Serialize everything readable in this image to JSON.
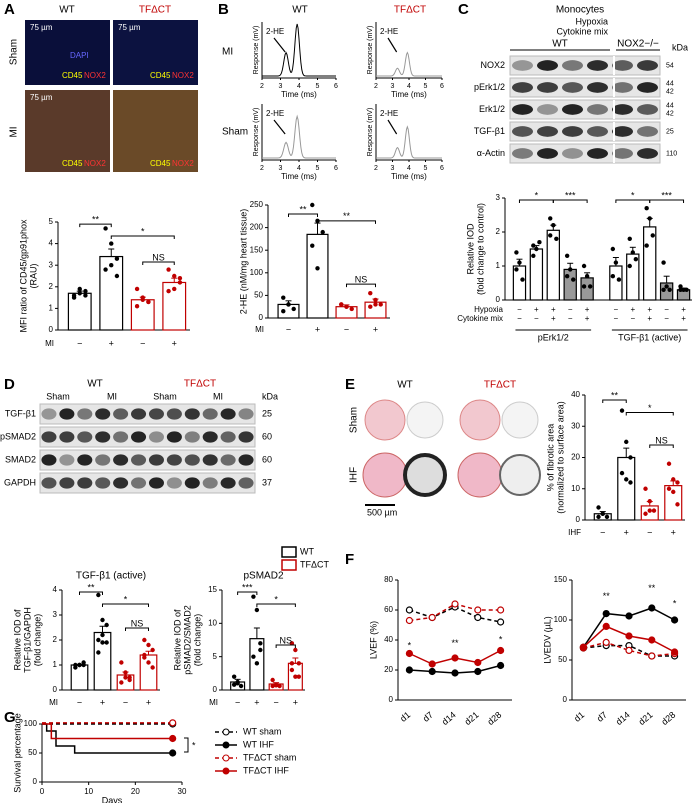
{
  "panels": {
    "A": {
      "letter": "A",
      "cols": [
        "WT",
        "TFΔCT"
      ],
      "rows": [
        "Sham",
        "MI"
      ],
      "scale": "75 µm",
      "stains": [
        "DAPI",
        "CD45",
        "NOX2"
      ]
    },
    "B": {
      "letter": "B",
      "cols": [
        "WT",
        "TFΔCT"
      ],
      "rows": [
        "MI",
        "Sham"
      ]
    },
    "C": {
      "letter": "C",
      "title": "Monocytes",
      "groups": [
        "WT",
        "NOX2−/−"
      ],
      "rows": [
        "Hypoxia",
        "Cytokine mix"
      ],
      "kda": "kDa",
      "blots": [
        {
          "label": "NOX2",
          "kda": [
            "54"
          ]
        },
        {
          "label": "pErk1/2",
          "kda": [
            "44",
            "42"
          ]
        },
        {
          "label": "Erk1/2",
          "kda": [
            "44",
            "42"
          ]
        },
        {
          "label": "TGF-β1",
          "kda": [
            "25"
          ]
        },
        {
          "label": "α-Actin",
          "kda": [
            "110"
          ]
        }
      ]
    },
    "D": {
      "letter": "D",
      "groups": [
        "WT",
        "TFΔCT"
      ],
      "lanes": [
        "Sham",
        "MI",
        "Sham",
        "MI"
      ],
      "kda": "kDa",
      "blots": [
        {
          "label": "TGF-β1",
          "kda": "25"
        },
        {
          "label": "pSMAD2",
          "kda": "60"
        },
        {
          "label": "SMAD2",
          "kda": "60"
        },
        {
          "label": "GAPDH",
          "kda": "37"
        }
      ]
    },
    "E": {
      "letter": "E",
      "cols": [
        "WT",
        "TFΔCT"
      ],
      "rows": [
        "Sham",
        "IHF"
      ],
      "scale": "500 µm"
    },
    "F": {
      "letter": "F"
    },
    "G": {
      "letter": "G"
    }
  },
  "chart_data": [
    {
      "type": "bar",
      "ylabel": [
        "MFI ratio of CD45/gp91phox",
        "(RAU)"
      ],
      "ylim": [
        0,
        5
      ],
      "yticks": [
        0,
        1,
        2,
        3,
        4,
        5
      ],
      "row_label": "MI",
      "categories": [
        "−",
        "+",
        "−",
        "+"
      ],
      "values": [
        1.7,
        3.4,
        1.4,
        2.2
      ],
      "errors": [
        0.1,
        0.35,
        0.12,
        0.2
      ],
      "colors": [
        "#000",
        "#000",
        "#c00000",
        "#c00000"
      ],
      "points": [
        [
          1.6,
          1.7,
          1.8,
          1.5,
          1.9,
          1.6
        ],
        [
          4.7,
          4.0,
          3.3,
          2.8,
          3.0,
          2.5
        ],
        [
          1.9,
          1.5,
          1.3,
          1.1,
          1.4,
          1.3
        ],
        [
          2.8,
          2.5,
          2.2,
          1.8,
          1.9,
          2.4
        ]
      ],
      "annotations": [
        "**",
        "*",
        "NS"
      ]
    },
    {
      "type": "bar",
      "ylabel": [
        "2-HE (nM/mg heart tissue)"
      ],
      "ylim": [
        0,
        250
      ],
      "yticks": [
        0,
        50,
        100,
        150,
        200,
        250
      ],
      "row_label": "MI",
      "categories": [
        "−",
        "+",
        "−",
        "+"
      ],
      "values": [
        30,
        185,
        25,
        35
      ],
      "errors": [
        8,
        25,
        4,
        7
      ],
      "colors": [
        "#000",
        "#000",
        "#c00000",
        "#c00000"
      ],
      "points": [
        [
          45,
          30,
          20,
          15,
          30
        ],
        [
          250,
          215,
          190,
          160,
          110
        ],
        [
          30,
          25,
          20,
          30,
          25
        ],
        [
          55,
          40,
          30,
          25,
          30
        ]
      ],
      "annotations": [
        "**",
        "**",
        "NS"
      ]
    },
    {
      "type": "bar",
      "ylabel": [
        "Relative IOD",
        "(fold change to control)"
      ],
      "ylim": [
        0,
        3
      ],
      "yticks": [
        0,
        1,
        2,
        3
      ],
      "rows": [
        {
          "label": "Hypoxia",
          "values": [
            "−",
            "+",
            "+",
            "−",
            "+",
            "−",
            "+",
            "+",
            "−",
            "+"
          ]
        },
        {
          "label": "Cytokine mix",
          "values": [
            "−",
            "−",
            "+",
            "−",
            "+",
            "−",
            "−",
            "+",
            "−",
            "+"
          ]
        }
      ],
      "groups": [
        "pErk1/2",
        "TGF-β1 (active)"
      ],
      "values": [
        1.0,
        1.5,
        2.05,
        0.9,
        0.65,
        1.0,
        1.35,
        2.15,
        0.5,
        0.3
      ],
      "errors": [
        0.2,
        0.1,
        0.15,
        0.18,
        0.15,
        0.25,
        0.2,
        0.25,
        0.2,
        0.05
      ],
      "colors": [
        "#000",
        "#000",
        "#000",
        "#000",
        "#000",
        "#000",
        "#000",
        "#000",
        "#000",
        "#000"
      ],
      "fills": [
        "#fff",
        "#fff",
        "#fff",
        "#999",
        "#999",
        "#fff",
        "#fff",
        "#fff",
        "#999",
        "#999"
      ],
      "points": [
        [
          1.4,
          1.1,
          0.6,
          0.9
        ],
        [
          1.6,
          1.5,
          1.7,
          1.3
        ],
        [
          2.4,
          2.2,
          1.8,
          1.9
        ],
        [
          1.3,
          0.9,
          0.6,
          0.7
        ],
        [
          1.0,
          0.7,
          0.4,
          0.4
        ],
        [
          1.5,
          1.1,
          0.6,
          0.7
        ],
        [
          1.8,
          1.4,
          1.2,
          1.0
        ],
        [
          2.7,
          2.4,
          1.9,
          1.6
        ],
        [
          1.1,
          0.4,
          0.3,
          0.3
        ],
        [
          0.4,
          0.3,
          0.3,
          0.3
        ]
      ],
      "annotations": [
        "*",
        "***",
        "*",
        "***"
      ]
    },
    {
      "type": "bar",
      "title": "TGF-β1 (active)",
      "ylabel": [
        "Relative IOD of",
        "TGF-β1/GAPDH",
        "(fold change)"
      ],
      "ylim": [
        0,
        4
      ],
      "yticks": [
        0,
        1,
        2,
        3,
        4
      ],
      "row_label": "MI",
      "categories": [
        "−",
        "+",
        "−",
        "+"
      ],
      "values": [
        1.0,
        2.3,
        0.6,
        1.4
      ],
      "errors": [
        0.03,
        0.25,
        0.12,
        0.15
      ],
      "colors": [
        "#000",
        "#000",
        "#c00000",
        "#c00000"
      ],
      "points": [
        [
          1.0,
          1.0,
          1.1,
          0.9,
          1.0,
          1.0
        ],
        [
          3.8,
          2.8,
          2.6,
          2.0,
          1.9,
          1.9,
          1.5,
          2.2
        ],
        [
          1.1,
          0.7,
          0.4,
          0.3,
          0.5,
          0.5
        ],
        [
          2.0,
          1.8,
          1.6,
          1.4,
          1.1,
          0.9,
          1.3
        ]
      ],
      "annotations": [
        "**",
        "*",
        "NS"
      ]
    },
    {
      "type": "bar",
      "title": "pSMAD2",
      "ylabel": [
        "Relative IOD of",
        "pSMAD2/SMAD2",
        "(fold change)"
      ],
      "ylim": [
        0,
        15
      ],
      "yticks": [
        0,
        5,
        10,
        15
      ],
      "row_label": "MI",
      "categories": [
        "−",
        "+",
        "−",
        "+"
      ],
      "values": [
        1.2,
        7.7,
        0.9,
        4.0
      ],
      "errors": [
        0.4,
        1.6,
        0.2,
        0.8
      ],
      "colors": [
        "#000",
        "#000",
        "#c00000",
        "#c00000"
      ],
      "points": [
        [
          2.0,
          1.2,
          0.6,
          0.8,
          1.0
        ],
        [
          14,
          12,
          7,
          5,
          4,
          6
        ],
        [
          1.5,
          0.7,
          0.6,
          0.6,
          0.8
        ],
        [
          7,
          6,
          4,
          3,
          2,
          2,
          4
        ]
      ],
      "annotations": [
        "***",
        "*",
        "NS"
      ],
      "legend": [
        {
          "name": "WT",
          "color": "#000"
        },
        {
          "name": "TFΔCT",
          "color": "#c00000"
        }
      ]
    },
    {
      "type": "bar",
      "ylabel": [
        "% of fibrotic area",
        "(normalized to surface area)"
      ],
      "ylim": [
        0,
        40
      ],
      "yticks": [
        0,
        10,
        20,
        30,
        40
      ],
      "row_label": "IHF",
      "categories": [
        "−",
        "+",
        "−",
        "+"
      ],
      "values": [
        2,
        20,
        4.5,
        11
      ],
      "errors": [
        0.7,
        3,
        1.4,
        1.5
      ],
      "colors": [
        "#000",
        "#000",
        "#c00000",
        "#c00000"
      ],
      "points": [
        [
          4,
          2,
          1,
          1,
          2
        ],
        [
          35,
          25,
          20,
          15,
          13,
          12
        ],
        [
          10,
          6,
          3,
          2,
          3
        ],
        [
          18,
          13,
          12,
          10,
          9,
          5
        ]
      ],
      "annotations": [
        "**",
        "*",
        "NS"
      ]
    },
    {
      "type": "line",
      "ylabel": [
        "LVEF (%)"
      ],
      "ylim": [
        0,
        80
      ],
      "yticks": [
        0,
        20,
        40,
        60,
        80
      ],
      "categories": [
        "d1",
        "d7",
        "d14",
        "d21",
        "d28"
      ],
      "series": [
        {
          "color": "#000",
          "dash": true,
          "marker": "open",
          "values": [
            60,
            55,
            62,
            55,
            52
          ]
        },
        {
          "color": "#000",
          "dash": false,
          "marker": "filled",
          "values": [
            20,
            19,
            18,
            19,
            23
          ]
        },
        {
          "color": "#c00000",
          "dash": true,
          "marker": "open",
          "values": [
            53,
            55,
            64,
            60,
            60
          ]
        },
        {
          "color": "#c00000",
          "dash": false,
          "marker": "filled",
          "values": [
            31,
            24,
            28,
            25,
            33
          ]
        }
      ],
      "annotations": [
        "*",
        "**",
        "*"
      ]
    },
    {
      "type": "line",
      "ylabel": [
        "LVEDV (µL)"
      ],
      "ylim": [
        0,
        150
      ],
      "yticks": [
        0,
        50,
        100,
        150
      ],
      "categories": [
        "d1",
        "d7",
        "d14",
        "d21",
        "d28"
      ],
      "series": [
        {
          "color": "#000",
          "dash": true,
          "marker": "open",
          "values": [
            65,
            68,
            68,
            55,
            55
          ]
        },
        {
          "color": "#000",
          "dash": false,
          "marker": "filled",
          "values": [
            66,
            108,
            105,
            115,
            100
          ]
        },
        {
          "color": "#c00000",
          "dash": true,
          "marker": "open",
          "values": [
            65,
            72,
            62,
            55,
            58
          ]
        },
        {
          "color": "#c00000",
          "dash": false,
          "marker": "filled",
          "values": [
            66,
            92,
            80,
            75,
            60
          ]
        }
      ],
      "annotations": [
        "**",
        "**",
        "*"
      ]
    },
    {
      "type": "step",
      "ylabel": [
        "Survival percentage"
      ],
      "xlabel": "Days",
      "xlim": [
        0,
        30
      ],
      "xticks": [
        0,
        10,
        20,
        30
      ],
      "ylim": [
        0,
        100
      ],
      "yticks": [
        0,
        50,
        100
      ],
      "series": [
        {
          "name": "WT sham",
          "color": "#000",
          "dash": true,
          "marker": "open",
          "x": [
            0,
            28
          ],
          "values": [
            100,
            100
          ]
        },
        {
          "name": "WT IHF",
          "color": "#000",
          "dash": false,
          "marker": "filled",
          "x": [
            0,
            1,
            3,
            7,
            28
          ],
          "values": [
            100,
            88,
            62,
            50,
            50
          ]
        },
        {
          "name": "TFΔCT sham",
          "color": "#c00000",
          "dash": true,
          "marker": "open",
          "x": [
            0,
            28
          ],
          "values": [
            102,
            102
          ]
        },
        {
          "name": "TFΔCT IHF",
          "color": "#c00000",
          "dash": false,
          "marker": "filled",
          "x": [
            0,
            2,
            28
          ],
          "values": [
            100,
            75,
            75
          ]
        }
      ],
      "annotations": [
        "*"
      ]
    },
    {
      "type": "chromatogram",
      "label": "2-HE",
      "ylabel": "Response (mV)",
      "xlabel": "Time (ms)",
      "xlim": [
        2,
        6
      ],
      "xticks": [
        2,
        3,
        4,
        5,
        6
      ]
    },
    {
      "type": "chromatogram",
      "label": "2-HE",
      "ylabel": "Response (mV)",
      "xlabel": "Time (ms)",
      "xlim": [
        2,
        6
      ],
      "xticks": [
        2,
        3,
        4,
        5,
        6
      ]
    },
    {
      "type": "chromatogram",
      "label": "2-HE",
      "ylabel": "Response (mV)",
      "xlabel": "Time (ms)",
      "xlim": [
        2,
        6
      ],
      "xticks": [
        2,
        3,
        4,
        5,
        6
      ]
    },
    {
      "type": "chromatogram",
      "label": "2-HE",
      "ylabel": "Response (mV)",
      "xlabel": "Time (ms)",
      "xlim": [
        2,
        6
      ],
      "xticks": [
        2,
        3,
        4,
        5,
        6
      ]
    }
  ]
}
